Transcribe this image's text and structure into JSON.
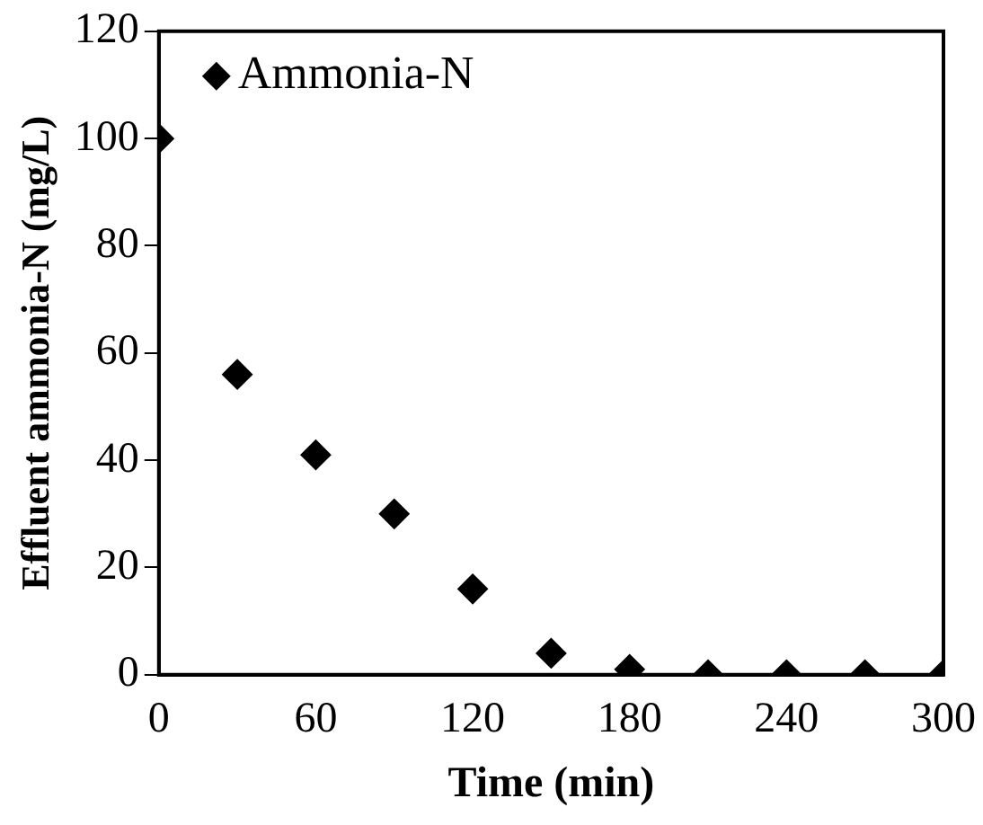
{
  "chart_data": {
    "type": "scatter",
    "xlabel": "Time (min)",
    "ylabel": "Effluent ammonia-N (mg/L)",
    "x": [
      0,
      30,
      60,
      90,
      120,
      150,
      180,
      210,
      240,
      270,
      300
    ],
    "series": [
      {
        "name": "Ammonia-N",
        "color": "#000000",
        "values": [
          100,
          56,
          41,
          30,
          16,
          4,
          1,
          0,
          0,
          0,
          0
        ]
      }
    ],
    "xlim": [
      0,
      300
    ],
    "xticks": [
      0,
      60,
      120,
      180,
      240,
      300
    ],
    "ylim": [
      0,
      120
    ],
    "yticks": [
      0,
      20,
      40,
      60,
      80,
      100,
      120
    ],
    "marker": "diamond",
    "legend": "top left",
    "grid": false
  }
}
